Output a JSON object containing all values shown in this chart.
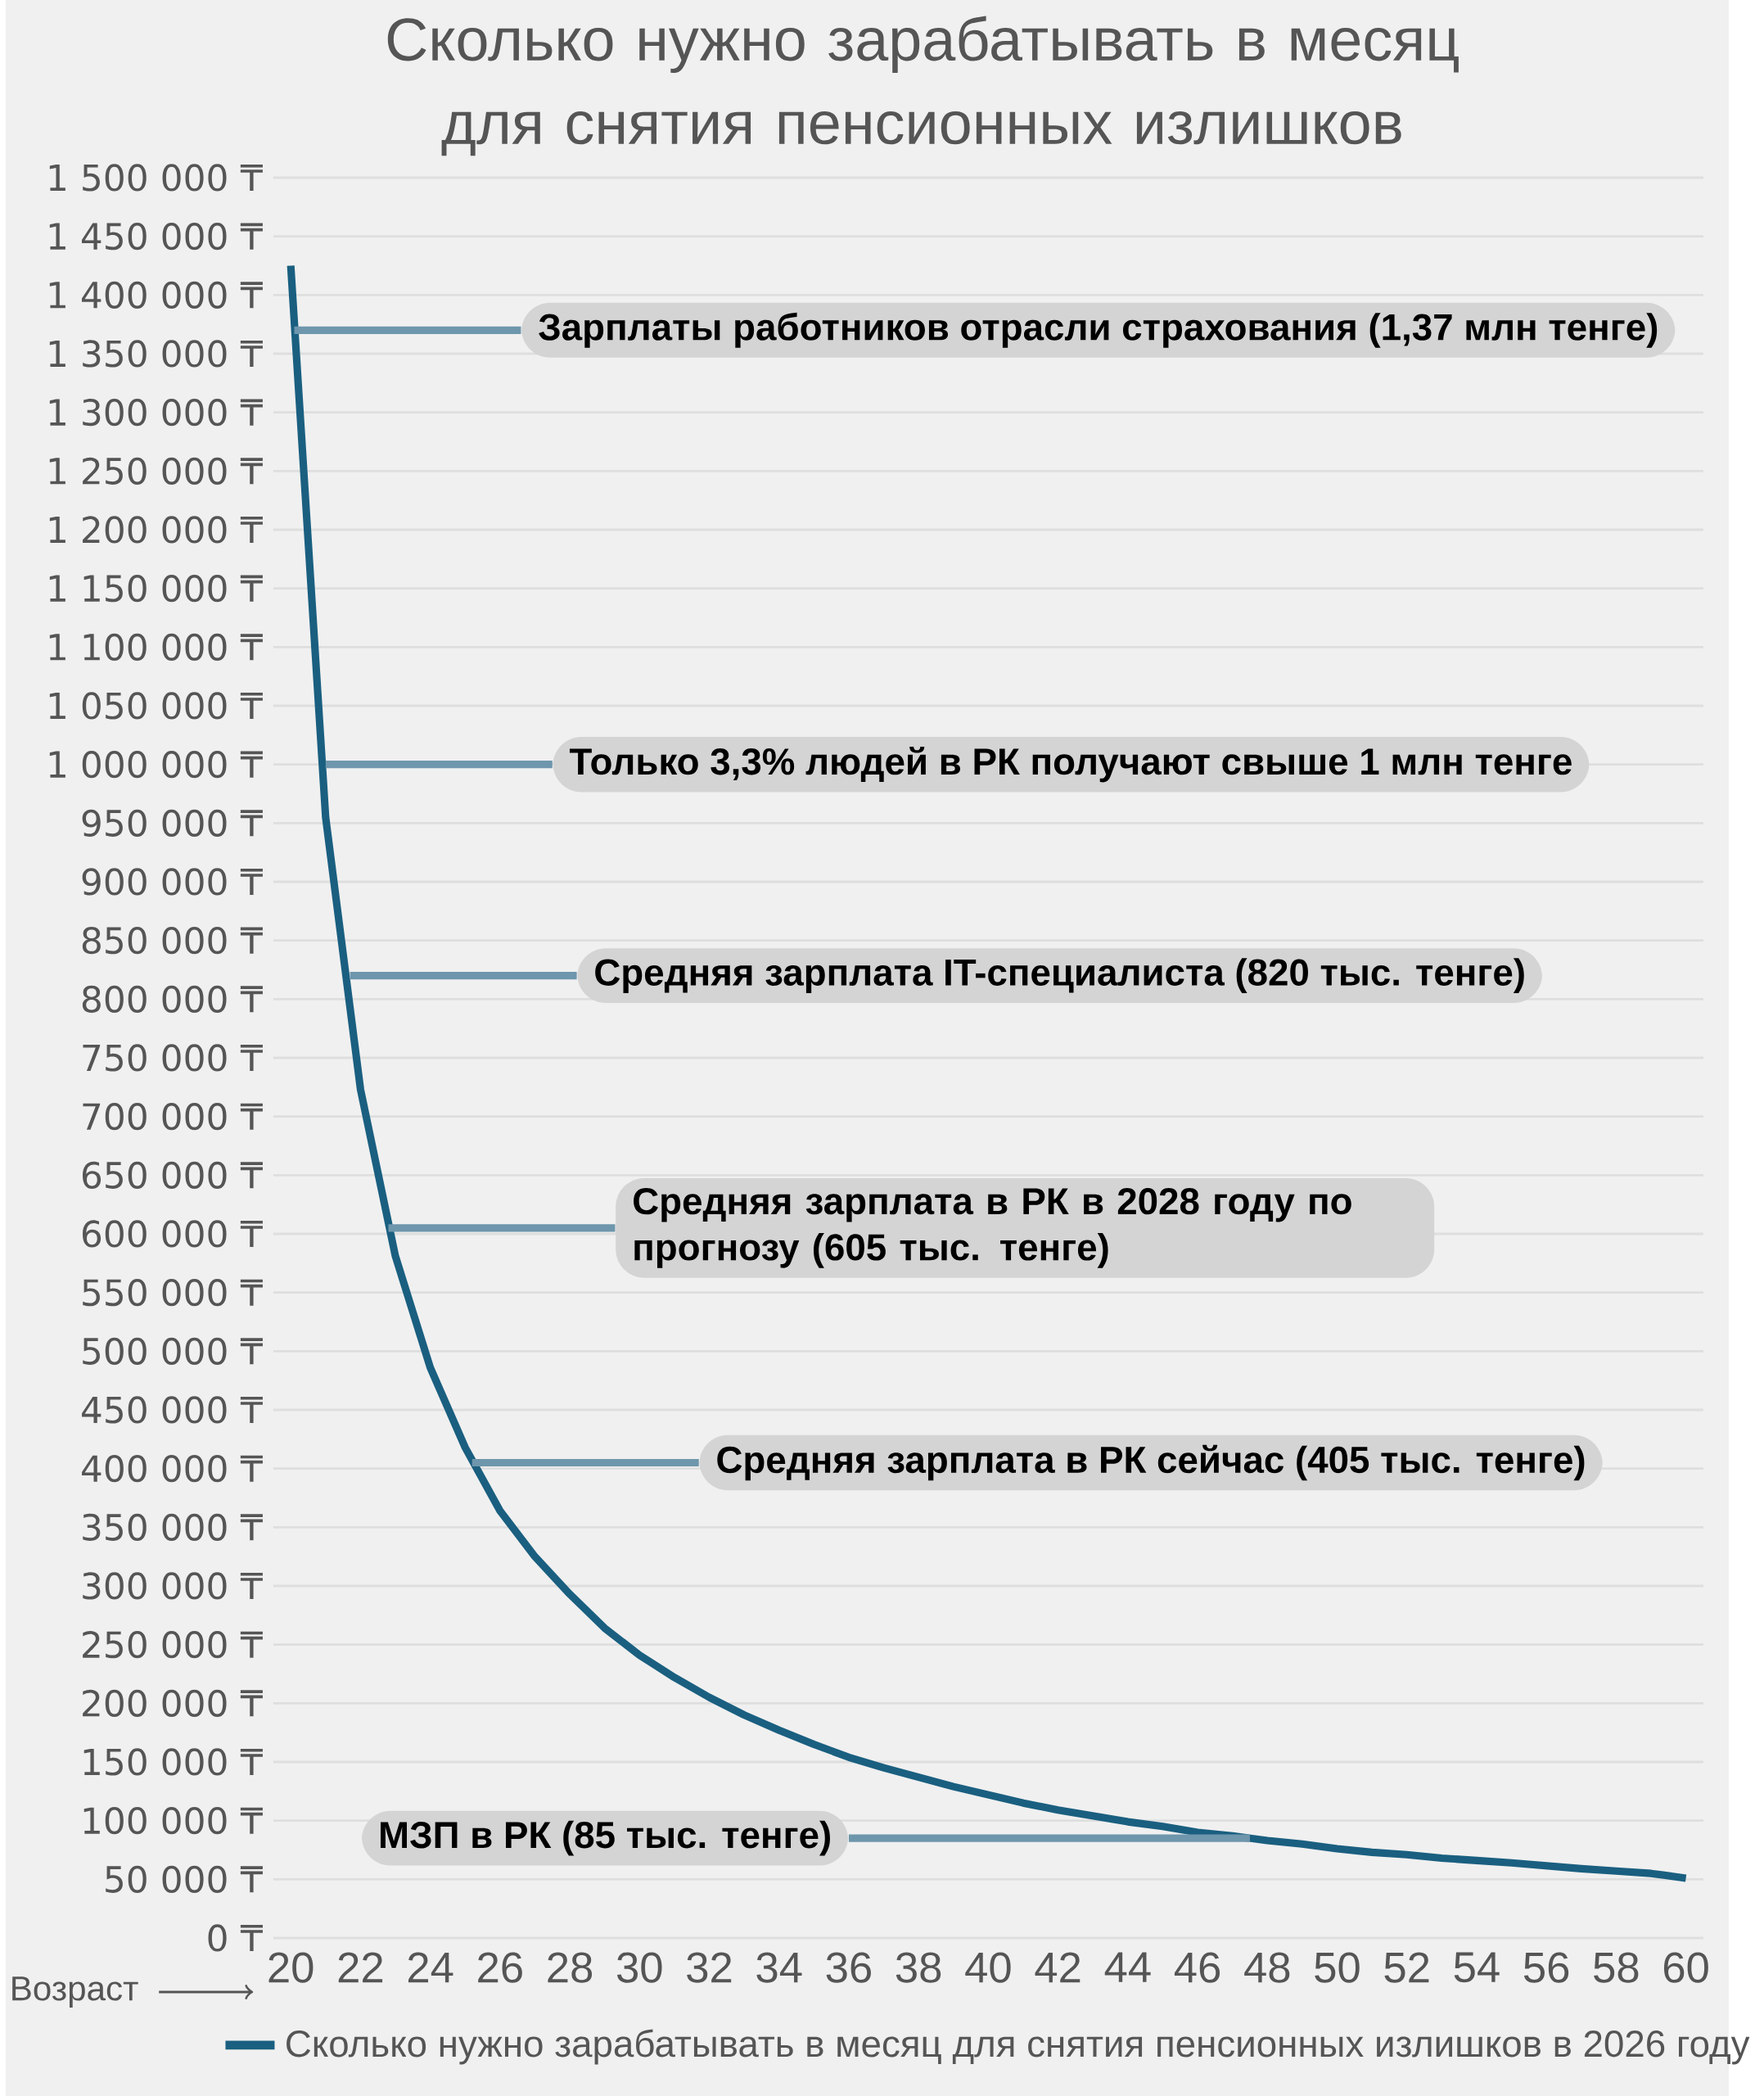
{
  "chart_data": {
    "type": "line",
    "title": "Сколько нужно зарабатывать в месяц для снятия пенсионных излишков",
    "xlabel": "Возраст",
    "x": [
      20,
      21,
      22,
      23,
      24,
      25,
      26,
      27,
      28,
      29,
      30,
      31,
      32,
      33,
      34,
      35,
      36,
      37,
      38,
      39,
      40,
      41,
      42,
      43,
      44,
      45,
      46,
      47,
      48,
      49,
      50,
      51,
      52,
      53,
      54,
      55,
      56,
      57,
      58,
      59,
      60
    ],
    "series": [
      {
        "name": "Сколько нужно зарабатывать в месяц для снятия пенсионных излишков в 2026 году",
        "color": "#1a5f80",
        "values": [
          1425000,
          955000,
          723000,
          581000,
          486000,
          418000,
          364000,
          325000,
          293000,
          264000,
          241000,
          222000,
          205000,
          190000,
          177000,
          165000,
          154000,
          145000,
          137000,
          129000,
          122000,
          115000,
          109000,
          104000,
          99000,
          95000,
          90000,
          87000,
          83000,
          80000,
          76000,
          73000,
          71000,
          68000,
          66000,
          64000,
          61500,
          59000,
          57000,
          55000,
          51000
        ]
      }
    ],
    "xlim": [
      19.5,
      60.5
    ],
    "xticks": [
      20,
      22,
      24,
      26,
      28,
      30,
      32,
      34,
      36,
      38,
      40,
      42,
      44,
      46,
      48,
      50,
      52,
      54,
      56,
      58,
      60
    ],
    "ylim": [
      0,
      1500000
    ],
    "yticks": [
      {
        "value": 0,
        "label": "0 ₸"
      },
      {
        "value": 50000,
        "label": "50 000 ₸"
      },
      {
        "value": 100000,
        "label": "100 000 ₸"
      },
      {
        "value": 150000,
        "label": "150 000 ₸"
      },
      {
        "value": 200000,
        "label": "200 000 ₸"
      },
      {
        "value": 250000,
        "label": "250 000 ₸"
      },
      {
        "value": 300000,
        "label": "300 000 ₸"
      },
      {
        "value": 350000,
        "label": "350 000 ₸"
      },
      {
        "value": 400000,
        "label": "400 000 ₸"
      },
      {
        "value": 450000,
        "label": "450 000 ₸"
      },
      {
        "value": 500000,
        "label": "500 000 ₸"
      },
      {
        "value": 550000,
        "label": "550 000 ₸"
      },
      {
        "value": 600000,
        "label": "600 000 ₸"
      },
      {
        "value": 650000,
        "label": "650 000 ₸"
      },
      {
        "value": 700000,
        "label": "700 000 ₸"
      },
      {
        "value": 750000,
        "label": "750 000 ₸"
      },
      {
        "value": 800000,
        "label": "800 000 ₸"
      },
      {
        "value": 850000,
        "label": "850 000 ₸"
      },
      {
        "value": 900000,
        "label": "900 000 ₸"
      },
      {
        "value": 950000,
        "label": "950 000 ₸"
      },
      {
        "value": 1000000,
        "label": "1 000 000 ₸"
      },
      {
        "value": 1050000,
        "label": "1 050 000 ₸"
      },
      {
        "value": 1100000,
        "label": "1 100 000 ₸"
      },
      {
        "value": 1150000,
        "label": "1 150 000 ₸"
      },
      {
        "value": 1200000,
        "label": "1 200 000 ₸"
      },
      {
        "value": 1250000,
        "label": "1 250 000 ₸"
      },
      {
        "value": 1300000,
        "label": "1 300 000 ₸"
      },
      {
        "value": 1350000,
        "label": "1 350 000 ₸"
      },
      {
        "value": 1400000,
        "label": "1 400 000 ₸"
      },
      {
        "value": 1450000,
        "label": "1 450 000 ₸"
      },
      {
        "value": 1500000,
        "label": "1 500 000 ₸"
      }
    ],
    "grid": "y",
    "legend": "bottom",
    "annotations": [
      {
        "text": "Зарплаты работников отрасли страхования (1,37 млн тенге)",
        "x": 20.1,
        "y": 1370000
      },
      {
        "text": "Только 3,3% людей в РК получают свыше 1 млн тенге",
        "x": 21.0,
        "y": 1000000
      },
      {
        "text": "Средняя зарплата IT-специалиста (820 тыс. тенге)",
        "x": 21.7,
        "y": 820000
      },
      {
        "text": "Средняя зарплата в РК в 2028 году по прогнозу (605 тыс. тенге)",
        "x": 22.8,
        "y": 605000
      },
      {
        "text": "Средняя зарплата в РК сейчас (405 тыс. тенге)",
        "x": 25.2,
        "y": 405000
      },
      {
        "text": "МЗП в РК (85 тыс. тенге)",
        "x": 47.5,
        "y": 85000
      }
    ]
  }
}
